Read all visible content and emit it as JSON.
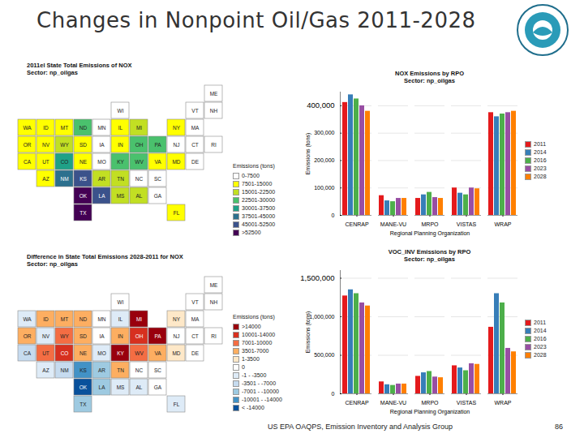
{
  "slide": {
    "title": "Changes in Nonpoint Oil/Gas 2011-2028",
    "footer": "US EPA OAQPS, Emission Inventory and Analysis Group",
    "page_number": 86
  },
  "chart_data": [
    {
      "type": "map",
      "title": "2011el State Total Emissions of NOX",
      "subtitle": "Sector: np_oilgas",
      "legend_title": "Emissions (tons)",
      "legend_items": [
        {
          "label": "0-7500",
          "min": 0,
          "max": 7500,
          "color": "#ffffff"
        },
        {
          "label": "7501-15000",
          "min": 7501,
          "max": 15000,
          "color": "#ffff00"
        },
        {
          "label": "15001-22500",
          "min": 15001,
          "max": 22500,
          "color": "#c2df23"
        },
        {
          "label": "22501-30000",
          "min": 22501,
          "max": 30000,
          "color": "#4ac16d"
        },
        {
          "label": "30001-37500",
          "min": 30001,
          "max": 37500,
          "color": "#1fa187"
        },
        {
          "label": "37501-45000",
          "min": 37501,
          "max": 45000,
          "color": "#2d708e"
        },
        {
          "label": "45001-52500",
          "min": 45001,
          "max": 52500,
          "color": "#3b528b"
        },
        {
          "label": ">52500",
          "min": 52501,
          "max": null,
          "color": "#440154"
        }
      ],
      "regions": [
        "WA",
        "OR",
        "CA",
        "NV",
        "ID",
        "MT",
        "WY",
        "UT",
        "AZ",
        "CO",
        "NM",
        "ND",
        "SD",
        "NE",
        "KS",
        "OK",
        "TX",
        "MN",
        "IA",
        "MO",
        "AR",
        "LA",
        "WI",
        "IL",
        "MI",
        "IN",
        "OH",
        "KY",
        "TN",
        "MS",
        "AL",
        "GA",
        "FL",
        "SC",
        "NC",
        "VA",
        "WV",
        "PA",
        "NY",
        "VT",
        "NH",
        "ME",
        "MA",
        "CT",
        "RI",
        "NJ",
        "DE",
        "MD"
      ],
      "values": [
        10000,
        10000,
        12000,
        9000,
        9000,
        12000,
        20000,
        13000,
        9000,
        33000,
        40000,
        28000,
        8000,
        10000,
        48000,
        60000,
        65000,
        2000,
        2000,
        2000,
        17000,
        48000,
        1000,
        9000,
        20000,
        10000,
        25000,
        24000,
        16000,
        18000,
        20000,
        1000,
        9000,
        1000,
        1000,
        14000,
        30000,
        30000,
        12000,
        1000,
        1000,
        1000,
        1000,
        1000,
        1000,
        1000,
        1000,
        9000
      ]
    },
    {
      "type": "map",
      "title": "Difference in State Total Emissions 2028-2011 for NOX",
      "subtitle": "Sector: np_oilgas",
      "legend_title": "Emissions (tons)",
      "legend_items": [
        {
          "label": ">14000",
          "min": 14001,
          "max": null,
          "color": "#99000d"
        },
        {
          "label": "10001-14000",
          "min": 10001,
          "max": 14000,
          "color": "#d7301f"
        },
        {
          "label": "7001-10000",
          "min": 7001,
          "max": 10000,
          "color": "#f46d43"
        },
        {
          "label": "3501-7000",
          "min": 3501,
          "max": 7000,
          "color": "#fdae61"
        },
        {
          "label": "1-3500",
          "min": 1,
          "max": 3500,
          "color": "#fee8c8"
        },
        {
          "label": "0",
          "min": 0,
          "max": 0,
          "color": "#ffffff"
        },
        {
          "label": "-1 - -3500",
          "min": -3500,
          "max": -1,
          "color": "#deebf7"
        },
        {
          "label": "-3501 - -7000",
          "min": -7000,
          "max": -3501,
          "color": "#c6dbef"
        },
        {
          "label": "-7001 - -10000",
          "min": -10000,
          "max": -7001,
          "color": "#9ecae1"
        },
        {
          "label": "-10001 - -14000",
          "min": -14000,
          "max": -10001,
          "color": "#4292c6"
        },
        {
          "label": "< -14000",
          "min": null,
          "max": -14001,
          "color": "#08519c"
        }
      ],
      "regions": [
        "WA",
        "OR",
        "CA",
        "NV",
        "ID",
        "MT",
        "WY",
        "UT",
        "AZ",
        "CO",
        "NM",
        "ND",
        "SD",
        "NE",
        "KS",
        "OK",
        "TX",
        "MN",
        "IA",
        "MO",
        "AR",
        "LA",
        "WI",
        "IL",
        "MI",
        "IN",
        "OH",
        "KY",
        "TN",
        "MS",
        "AL",
        "GA",
        "FL",
        "SC",
        "NC",
        "VA",
        "WV",
        "PA",
        "NY",
        "VT",
        "NH",
        "ME",
        "MA",
        "CT",
        "RI",
        "NJ",
        "DE",
        "MD"
      ],
      "values": [
        -2000,
        5000,
        -5000,
        -1000,
        5000,
        5000,
        8000,
        8000,
        -1000,
        12000,
        -5000,
        5000,
        5000,
        5000,
        -12000,
        -20000,
        -8000,
        0,
        0,
        -1000,
        -8000,
        -8000,
        0,
        -1000,
        16000,
        5000,
        12000,
        16000,
        5000,
        -3000,
        -3000,
        0,
        -1000,
        0,
        0,
        5000,
        9000,
        16000,
        3000,
        0,
        0,
        0,
        0,
        0,
        0,
        0,
        0,
        2000
      ]
    },
    {
      "type": "bar",
      "title": "NOX Emissions by RPO",
      "subtitle": "Sector: np_oilgas",
      "x_label": "Regional Planning Organization",
      "y_label": "Emissions (tons)",
      "categories": [
        "CENRAP",
        "MANE-VU",
        "MRPO",
        "VISTAS",
        "WRAP"
      ],
      "series": [
        {
          "name": "2011",
          "color": "#e41a1c",
          "values": [
            412000,
            72000,
            62000,
            100000,
            375000
          ]
        },
        {
          "name": "2014",
          "color": "#377eb8",
          "values": [
            440000,
            53000,
            75000,
            81000,
            360000
          ]
        },
        {
          "name": "2016",
          "color": "#4daf4a",
          "values": [
            425000,
            50000,
            84000,
            75000,
            370000
          ]
        },
        {
          "name": "2023",
          "color": "#984ea3",
          "values": [
            400000,
            62000,
            65000,
            100000,
            375000
          ]
        },
        {
          "name": "2028",
          "color": "#ff7f00",
          "values": [
            380000,
            62000,
            62000,
            97000,
            380000
          ]
        }
      ],
      "ylim": [
        0,
        450000
      ],
      "yticks": [
        0,
        {
          "value": 100000,
          "label": "100,000"
        },
        {
          "value": 200000,
          "label": "200,000"
        },
        {
          "value": 300000,
          "label": "300,000"
        },
        {
          "value": 400000,
          "label": "400,000"
        }
      ],
      "grid": true,
      "legend": "right"
    },
    {
      "type": "bar",
      "title": "VOC_INV Emissions by RPO",
      "subtitle": "Sector: np_oilgas",
      "x_label": "Regional Planning Organization",
      "y_label": "Emissions (tons)",
      "categories": [
        "CENRAP",
        "MANE-VU",
        "MRPO",
        "VISTAS",
        "WRAP"
      ],
      "series": [
        {
          "name": "2011",
          "color": "#e41a1c",
          "values": [
            1270000,
            155000,
            227000,
            364000,
            864000
          ]
        },
        {
          "name": "2014",
          "color": "#377eb8",
          "values": [
            1350000,
            118000,
            273000,
            336000,
            1300000
          ]
        },
        {
          "name": "2016",
          "color": "#4daf4a",
          "values": [
            1300000,
            109000,
            290000,
            300000,
            1180000
          ]
        },
        {
          "name": "2023",
          "color": "#984ea3",
          "values": [
            1180000,
            127000,
            218000,
            391000,
            590000
          ]
        },
        {
          "name": "2028",
          "color": "#ff7f00",
          "values": [
            1140000,
            127000,
            209000,
            382000,
            545000
          ]
        }
      ],
      "ylim": [
        0,
        1600000
      ],
      "yticks": [
        0,
        {
          "value": 500000,
          "label": "500,000"
        },
        {
          "value": 1000000,
          "label": "1,000,000"
        },
        {
          "value": 1500000,
          "label": "1,500,000"
        }
      ],
      "grid": true,
      "legend": "right"
    }
  ]
}
